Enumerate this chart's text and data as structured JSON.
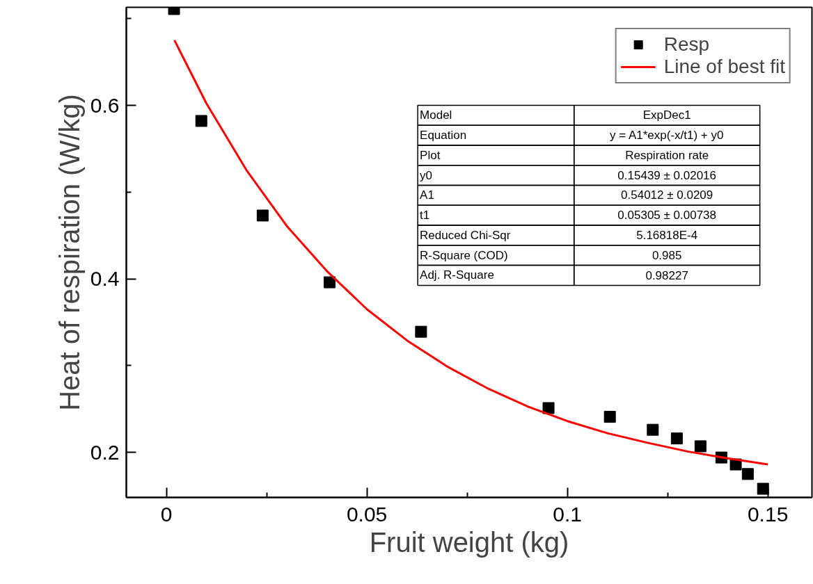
{
  "chart_data": {
    "type": "scatter",
    "xlabel": "Fruit weight (kg)",
    "ylabel": "Heat of respiration (W/kg)",
    "xlim": [
      -0.01,
      0.161
    ],
    "ylim": [
      0.148,
      0.713
    ],
    "xticks": [
      0,
      {
        "value": 0.025,
        "label": null
      },
      0.05,
      {
        "value": 0.075,
        "label": null
      },
      0.1,
      {
        "value": 0.125,
        "label": null
      },
      0.15
    ],
    "yticks": [
      0.2,
      {
        "value": 0.3,
        "label": null
      },
      0.4,
      {
        "value": 0.5,
        "label": null
      },
      0.6,
      {
        "value": 0.7,
        "label": null
      }
    ],
    "grid": false,
    "legend": "top right",
    "series": [
      {
        "name": "Resp",
        "marker": "square",
        "color": "#000000",
        "x": [
          0.0019,
          0.0087,
          0.024,
          0.0407,
          0.0635,
          0.0953,
          0.1106,
          0.1213,
          0.1273,
          0.1332,
          0.1384,
          0.142,
          0.145,
          0.1488
        ],
        "values": [
          0.711,
          0.582,
          0.473,
          0.396,
          0.339,
          0.251,
          0.241,
          0.226,
          0.216,
          0.207,
          0.194,
          0.186,
          0.175,
          0.158
        ]
      },
      {
        "name": "Line of best fit",
        "type": "line",
        "color": "#ff0000",
        "x": [
          0.002,
          0.01,
          0.02,
          0.03,
          0.04,
          0.05,
          0.06,
          0.07,
          0.08,
          0.09,
          0.1,
          0.11,
          0.12,
          0.13,
          0.14,
          0.15
        ],
        "values": [
          0.675,
          0.602,
          0.525,
          0.461,
          0.409,
          0.365,
          0.329,
          0.299,
          0.274,
          0.253,
          0.236,
          0.222,
          0.211,
          0.201,
          0.193,
          0.186
        ]
      }
    ],
    "annotations": [
      "Model",
      "ExpDec1",
      "Equation",
      "y = A1*exp(-x/t1) + y0",
      "Plot",
      "Respiration rate",
      "y0",
      "0.15439 ± 0.02016",
      "A1",
      "0.54012 ± 0.0209",
      "t1",
      "0.05305 ± 0.00738",
      "Reduced Chi-Sqr",
      "5.16818E-4",
      "R-Square (COD)",
      "0.985",
      "Adj. R-Square",
      "0.98227"
    ]
  }
}
